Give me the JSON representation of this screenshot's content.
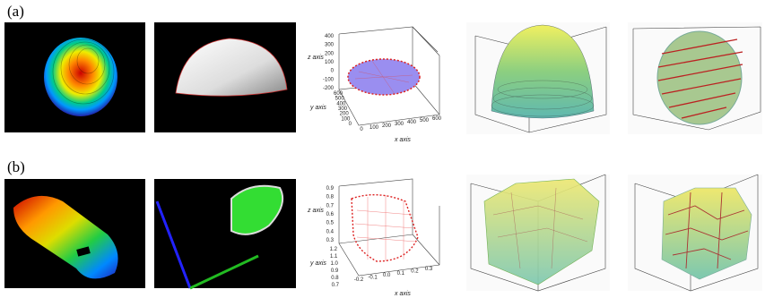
{
  "figure": {
    "rows": [
      {
        "label": "(a)",
        "plot": {
          "z_axis": "z axis",
          "y_axis": "y axis",
          "x_axis": "x axis",
          "z_ticks": [
            "400",
            "300",
            "200",
            "100",
            "0",
            "-100",
            "-200"
          ],
          "y_ticks": [
            "600",
            "500",
            "400",
            "300",
            "200",
            "100",
            "0"
          ],
          "x_ticks": [
            "0",
            "100",
            "200",
            "300",
            "400",
            "500",
            "600"
          ]
        }
      },
      {
        "label": "(b)",
        "plot": {
          "z_axis": "z axis",
          "y_axis": "y axis",
          "x_axis": "x axis",
          "z_ticks": [
            "0.9",
            "0.8",
            "0.7",
            "0.6",
            "0.5",
            "0.4",
            "0.3"
          ],
          "y_ticks": [
            "1.2",
            "1.1",
            "1.0",
            "0.9",
            "0.8",
            "0.7"
          ],
          "x_ticks": [
            "-0.2",
            "-0.1",
            "0.0",
            "0.1",
            "0.2",
            "0.3"
          ]
        }
      }
    ]
  }
}
